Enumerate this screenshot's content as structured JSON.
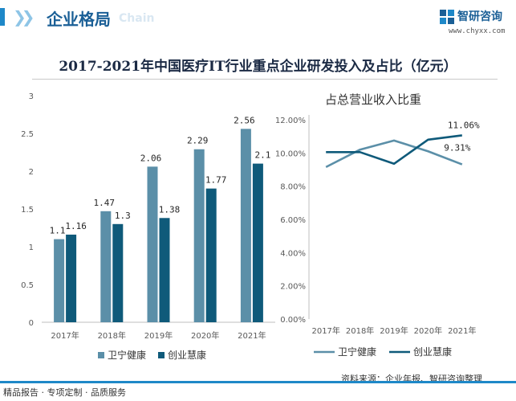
{
  "header": {
    "title": "企业格局",
    "subtitle": "Chain",
    "logo_name": "智研咨询",
    "logo_url": "www.chyxx.com"
  },
  "title": "2017-2021年中国医疗IT行业重点企业研发投入及占比（亿元）",
  "colors": {
    "series1": "#5b8fa8",
    "series2": "#0f5a7a",
    "accent": "#1e88c8"
  },
  "chart_data": [
    {
      "type": "bar",
      "categories": [
        "2017年",
        "2018年",
        "2019年",
        "2020年",
        "2021年"
      ],
      "series": [
        {
          "name": "卫宁健康",
          "values": [
            1.1,
            1.47,
            2.06,
            2.29,
            2.56
          ],
          "labels": [
            "1.1",
            "1.47",
            "2.06",
            "2.29",
            "2.56"
          ]
        },
        {
          "name": "创业慧康",
          "values": [
            1.16,
            1.3,
            1.38,
            1.77,
            2.1
          ],
          "labels": [
            "1.16",
            "1.3",
            "1.38",
            "1.77",
            "2.1"
          ]
        }
      ],
      "yticks": [
        "0",
        "0.5",
        "1",
        "1.5",
        "2",
        "2.5",
        "3"
      ],
      "ylim": [
        0,
        3
      ],
      "legend": "bottom"
    },
    {
      "type": "line",
      "title": "占总营业收入比重",
      "categories": [
        "2017年",
        "2018年",
        "2019年",
        "2020年",
        "2021年"
      ],
      "series": [
        {
          "name": "卫宁健康",
          "values": [
            9.15,
            10.2,
            10.75,
            10.1,
            9.31
          ]
        },
        {
          "name": "创业慧康",
          "values": [
            10.05,
            10.05,
            9.35,
            10.8,
            11.06
          ]
        }
      ],
      "annotations": [
        "11.06%",
        "9.31%"
      ],
      "yticks": [
        "0.00%",
        "2.00%",
        "4.00%",
        "6.00%",
        "8.00%",
        "10.00%",
        "12.00%"
      ],
      "ylim": [
        0,
        12
      ],
      "legend": "bottom"
    }
  ],
  "footer": {
    "left": "精品报告 · 专项定制 · 品质服务",
    "source": "资料来源：企业年报、智研咨询整理"
  }
}
